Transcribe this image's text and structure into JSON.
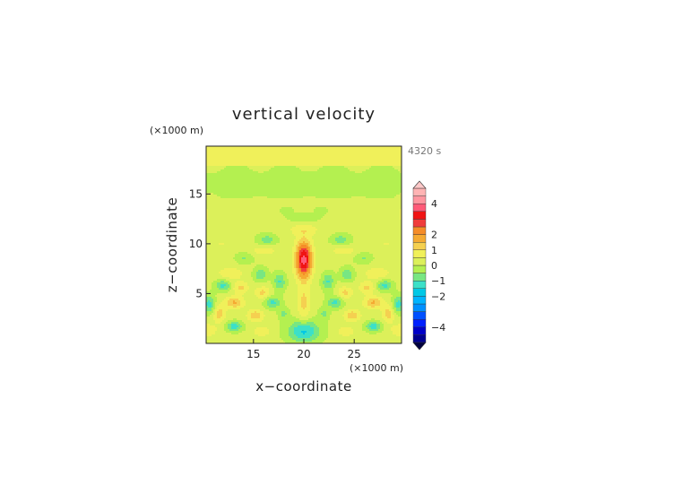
{
  "chart_data": {
    "type": "heatmap",
    "title": "vertical velocity",
    "xlabel": "x−coordinate",
    "ylabel": "z−coordinate",
    "x_unit": "(×1000 m)",
    "y_unit": "(×1000 m)",
    "time_label": "4320 s",
    "xlim": [
      10.3,
      29.7
    ],
    "ylim": [
      0,
      19.8
    ],
    "x_ticks": [
      15,
      20,
      25
    ],
    "y_ticks": [
      5,
      10,
      15
    ],
    "colorbar": {
      "range": [
        -5,
        5
      ],
      "tick_values": [
        4,
        2,
        1,
        0,
        -1,
        -2,
        -4
      ],
      "tick_labels": [
        "4",
        "2",
        "1",
        "0",
        "−1",
        "−2",
        "−4"
      ],
      "levels": [
        -5,
        -4.5,
        -4,
        -3.5,
        -3,
        -2.5,
        -2,
        -1.5,
        -1,
        -0.5,
        0,
        0.5,
        1,
        1.5,
        2,
        2.5,
        3,
        3.5,
        4,
        4.5,
        5
      ],
      "colors": [
        "#000040",
        "#00008f",
        "#0000c8",
        "#0020ff",
        "#0050ff",
        "#0090ff",
        "#00b4ff",
        "#00c8e6",
        "#3ce0c8",
        "#78e682",
        "#b4f050",
        "#dcf05a",
        "#f0f05a",
        "#f5d050",
        "#f5aa32",
        "#f58c28",
        "#f03c3c",
        "#f01414",
        "#ff5a78",
        "#ff96a0",
        "#ffb4b4",
        "#ffc8c8"
      ]
    },
    "fields": [
      {
        "x": 20.0,
        "z": 8.4,
        "sx": 0.8,
        "sz": 1.8,
        "a": 3.6
      },
      {
        "x": 20.0,
        "z": 4.0,
        "sx": 0.6,
        "sz": 1.8,
        "a": 1.0
      },
      {
        "x": 20.0,
        "z": 1.2,
        "sx": 1.6,
        "sz": 1.1,
        "a": -1.8
      },
      {
        "x": 16.3,
        "z": 10.4,
        "sx": 1.0,
        "sz": 0.6,
        "a": -0.9
      },
      {
        "x": 23.7,
        "z": 10.4,
        "sx": 1.0,
        "sz": 0.6,
        "a": -0.9
      },
      {
        "x": 16.0,
        "z": 9.3,
        "sx": 1.4,
        "sz": 0.5,
        "a": 0.6
      },
      {
        "x": 24.0,
        "z": 9.3,
        "sx": 1.4,
        "sz": 0.5,
        "a": 0.6
      },
      {
        "x": 14.1,
        "z": 8.6,
        "sx": 0.9,
        "sz": 0.6,
        "a": -0.7
      },
      {
        "x": 25.9,
        "z": 8.6,
        "sx": 0.9,
        "sz": 0.6,
        "a": -0.7
      },
      {
        "x": 12.7,
        "z": 7.0,
        "sx": 1.2,
        "sz": 0.6,
        "a": 0.8
      },
      {
        "x": 27.3,
        "z": 7.0,
        "sx": 1.2,
        "sz": 0.6,
        "a": 0.8
      },
      {
        "x": 15.7,
        "z": 6.9,
        "sx": 0.7,
        "sz": 0.7,
        "a": -1.1
      },
      {
        "x": 24.3,
        "z": 6.9,
        "sx": 0.7,
        "sz": 0.7,
        "a": -1.1
      },
      {
        "x": 17.6,
        "z": 6.2,
        "sx": 0.6,
        "sz": 0.9,
        "a": -1.2
      },
      {
        "x": 22.4,
        "z": 6.2,
        "sx": 0.6,
        "sz": 0.9,
        "a": -1.2
      },
      {
        "x": 12.0,
        "z": 5.8,
        "sx": 0.8,
        "sz": 0.6,
        "a": -1.3
      },
      {
        "x": 28.0,
        "z": 5.8,
        "sx": 0.8,
        "sz": 0.6,
        "a": -1.3
      },
      {
        "x": 13.7,
        "z": 5.6,
        "sx": 0.8,
        "sz": 0.6,
        "a": 1.0
      },
      {
        "x": 26.3,
        "z": 5.6,
        "sx": 0.8,
        "sz": 0.6,
        "a": 1.0
      },
      {
        "x": 15.9,
        "z": 5.1,
        "sx": 0.7,
        "sz": 0.6,
        "a": 1.0
      },
      {
        "x": 24.1,
        "z": 5.1,
        "sx": 0.7,
        "sz": 0.6,
        "a": 1.0
      },
      {
        "x": 16.9,
        "z": 4.1,
        "sx": 0.8,
        "sz": 0.6,
        "a": -1.3
      },
      {
        "x": 23.1,
        "z": 4.1,
        "sx": 0.8,
        "sz": 0.6,
        "a": -1.3
      },
      {
        "x": 13.1,
        "z": 4.1,
        "sx": 0.9,
        "sz": 0.6,
        "a": 1.4
      },
      {
        "x": 26.9,
        "z": 4.1,
        "sx": 0.9,
        "sz": 0.6,
        "a": 1.4
      },
      {
        "x": 10.6,
        "z": 3.9,
        "sx": 0.6,
        "sz": 0.9,
        "a": -1.4
      },
      {
        "x": 29.4,
        "z": 3.9,
        "sx": 0.6,
        "sz": 0.9,
        "a": -1.4
      },
      {
        "x": 11.6,
        "z": 3.0,
        "sx": 0.6,
        "sz": 0.9,
        "a": 1.1
      },
      {
        "x": 28.4,
        "z": 3.0,
        "sx": 0.6,
        "sz": 0.9,
        "a": 1.1
      },
      {
        "x": 15.2,
        "z": 2.8,
        "sx": 0.8,
        "sz": 0.6,
        "a": 1.2
      },
      {
        "x": 24.8,
        "z": 2.8,
        "sx": 0.8,
        "sz": 0.6,
        "a": 1.2
      },
      {
        "x": 18.0,
        "z": 3.0,
        "sx": 0.5,
        "sz": 0.6,
        "a": -0.8
      },
      {
        "x": 22.0,
        "z": 3.0,
        "sx": 0.5,
        "sz": 0.6,
        "a": -0.8
      },
      {
        "x": 13.1,
        "z": 1.7,
        "sx": 0.8,
        "sz": 0.5,
        "a": -1.5
      },
      {
        "x": 26.9,
        "z": 1.7,
        "sx": 0.8,
        "sz": 0.5,
        "a": -1.5
      },
      {
        "x": 10.4,
        "z": 1.3,
        "sx": 1.0,
        "sz": 0.7,
        "a": 0.7
      },
      {
        "x": 29.6,
        "z": 1.3,
        "sx": 1.0,
        "sz": 0.7,
        "a": 0.7
      },
      {
        "x": 15.8,
        "z": 1.2,
        "sx": 0.8,
        "sz": 0.5,
        "a": 0.8
      },
      {
        "x": 24.2,
        "z": 1.2,
        "sx": 0.8,
        "sz": 0.5,
        "a": 0.8
      },
      {
        "x": 20.0,
        "z": 12.6,
        "sx": 1.4,
        "sz": 0.45,
        "a": -0.7
      },
      {
        "x": 18.3,
        "z": 13.3,
        "sx": 0.6,
        "sz": 0.4,
        "a": -0.6
      },
      {
        "x": 21.7,
        "z": 13.3,
        "sx": 0.6,
        "sz": 0.4,
        "a": -0.6
      },
      {
        "x": 20.0,
        "z": 11.4,
        "sx": 1.6,
        "sz": 0.6,
        "a": 0.6
      },
      {
        "x": 11.8,
        "z": 10.0,
        "sx": 1.5,
        "sz": 0.8,
        "a": 0.35
      },
      {
        "x": 28.2,
        "z": 10.0,
        "sx": 1.5,
        "sz": 0.8,
        "a": 0.35
      },
      {
        "x": 20.0,
        "z": 16.0,
        "sx": 20.0,
        "sz": 1.2,
        "a": -0.35
      },
      {
        "x": 10.0,
        "z": 13.0,
        "sx": 0.9,
        "sz": 1.5,
        "a": 0.45
      },
      {
        "x": 30.0,
        "z": 13.0,
        "sx": 0.9,
        "sz": 1.5,
        "a": 0.45
      }
    ],
    "background": {
      "top_z": 17.8,
      "top_value": 0.65,
      "mid_value": 0.05,
      "lower_value": 0.55
    }
  }
}
